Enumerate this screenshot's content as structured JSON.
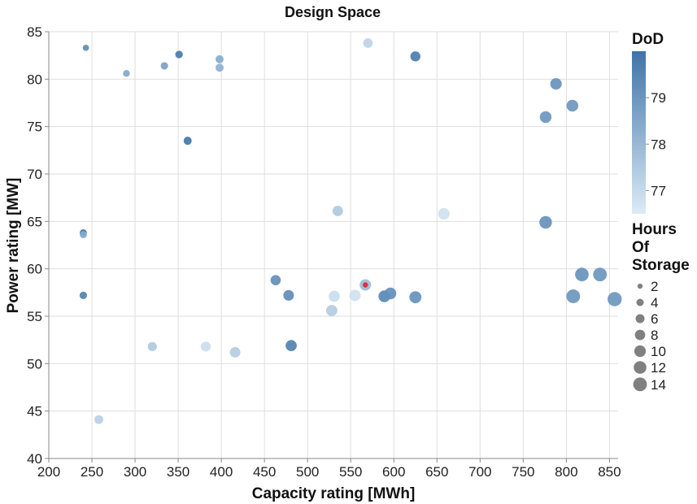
{
  "chart_data": {
    "type": "scatter",
    "title": "Design Space",
    "xlabel": "Capacity rating [MWh]",
    "ylabel": "Power rating [MW]",
    "xlim": [
      200,
      860
    ],
    "ylim": [
      40,
      85
    ],
    "x_ticks": [
      "200",
      "250",
      "300",
      "350",
      "400",
      "450",
      "500",
      "550",
      "600",
      "650",
      "700",
      "750",
      "800",
      "850"
    ],
    "y_ticks": [
      "40",
      "45",
      "50",
      "55",
      "60",
      "65",
      "70",
      "75",
      "80",
      "85"
    ],
    "grid": true,
    "color_legend": {
      "title": "DoD",
      "range": [
        76.5,
        80
      ],
      "tick_values": [
        77,
        78,
        79
      ],
      "tick_labels": [
        "77",
        "78",
        "79"
      ],
      "color_low": "#dcebf6",
      "color_high": "#3f74a8"
    },
    "size_legend": {
      "title_lines": [
        "Hours",
        "Of",
        "Storage"
      ],
      "values": [
        2,
        4,
        6,
        8,
        10,
        12,
        14
      ],
      "labels": [
        "2",
        "4",
        "6",
        "8",
        "10",
        "12",
        "14"
      ],
      "color": "#808080"
    },
    "highlight_color": "#e0303a",
    "points": [
      {
        "x": 243,
        "y": 83.3,
        "hours": 2.9,
        "dod": 79.3
      },
      {
        "x": 290,
        "y": 80.6,
        "hours": 3.5,
        "dod": 78.5
      },
      {
        "x": 334,
        "y": 81.4,
        "hours": 4.1,
        "dod": 78.7
      },
      {
        "x": 351,
        "y": 82.6,
        "hours": 4.3,
        "dod": 79.8
      },
      {
        "x": 398,
        "y": 82.1,
        "hours": 4.8,
        "dod": 78.4
      },
      {
        "x": 398,
        "y": 81.2,
        "hours": 4.9,
        "dod": 78.2
      },
      {
        "x": 361,
        "y": 73.5,
        "hours": 4.9,
        "dod": 79.9
      },
      {
        "x": 570,
        "y": 83.8,
        "hours": 6.8,
        "dod": 77.2
      },
      {
        "x": 625,
        "y": 82.4,
        "hours": 7.6,
        "dod": 79.7
      },
      {
        "x": 240,
        "y": 63.8,
        "hours": 3.8,
        "dod": 79.9
      },
      {
        "x": 240,
        "y": 63.6,
        "hours": 3.8,
        "dod": 78.4
      },
      {
        "x": 240,
        "y": 57.2,
        "hours": 4.2,
        "dod": 79.6
      },
      {
        "x": 258,
        "y": 44.1,
        "hours": 5.9,
        "dod": 77.3
      },
      {
        "x": 320,
        "y": 51.8,
        "hours": 6.2,
        "dod": 77.5
      },
      {
        "x": 382,
        "y": 51.8,
        "hours": 7.4,
        "dod": 76.9
      },
      {
        "x": 416,
        "y": 51.2,
        "hours": 8.1,
        "dod": 77.4
      },
      {
        "x": 463,
        "y": 58.8,
        "hours": 7.9,
        "dod": 79.2
      },
      {
        "x": 478,
        "y": 57.2,
        "hours": 8.4,
        "dod": 79.3
      },
      {
        "x": 481,
        "y": 51.9,
        "hours": 9.3,
        "dod": 79.6
      },
      {
        "x": 528,
        "y": 55.6,
        "hours": 9.5,
        "dod": 77.4
      },
      {
        "x": 531,
        "y": 57.1,
        "hours": 9.3,
        "dod": 76.9
      },
      {
        "x": 535,
        "y": 66.1,
        "hours": 8.1,
        "dod": 77.5
      },
      {
        "x": 555,
        "y": 57.2,
        "hours": 9.7,
        "dod": 76.8
      },
      {
        "x": 567,
        "y": 58.3,
        "hours": 9.7,
        "dod": 77.9
      },
      {
        "x": 589,
        "y": 57.1,
        "hours": 10.3,
        "dod": 79.4
      },
      {
        "x": 596,
        "y": 57.4,
        "hours": 10.4,
        "dod": 79.2
      },
      {
        "x": 625,
        "y": 57.0,
        "hours": 10.9,
        "dod": 79.1
      },
      {
        "x": 658,
        "y": 65.8,
        "hours": 10.0,
        "dod": 76.8
      },
      {
        "x": 776,
        "y": 64.9,
        "hours": 11.9,
        "dod": 79.1
      },
      {
        "x": 776,
        "y": 76.0,
        "hours": 10.2,
        "dod": 79.0
      },
      {
        "x": 788,
        "y": 79.5,
        "hours": 9.9,
        "dod": 79.1
      },
      {
        "x": 807,
        "y": 77.2,
        "hours": 10.4,
        "dod": 79.0
      },
      {
        "x": 808,
        "y": 57.1,
        "hours": 14.1,
        "dod": 79.0
      },
      {
        "x": 818,
        "y": 59.4,
        "hours": 13.8,
        "dod": 79.1
      },
      {
        "x": 839,
        "y": 59.4,
        "hours": 14.1,
        "dod": 79.0
      },
      {
        "x": 856,
        "y": 56.8,
        "hours": 15.0,
        "dod": 79.0
      }
    ],
    "highlight_point": {
      "x": 567,
      "y": 58.3
    }
  }
}
